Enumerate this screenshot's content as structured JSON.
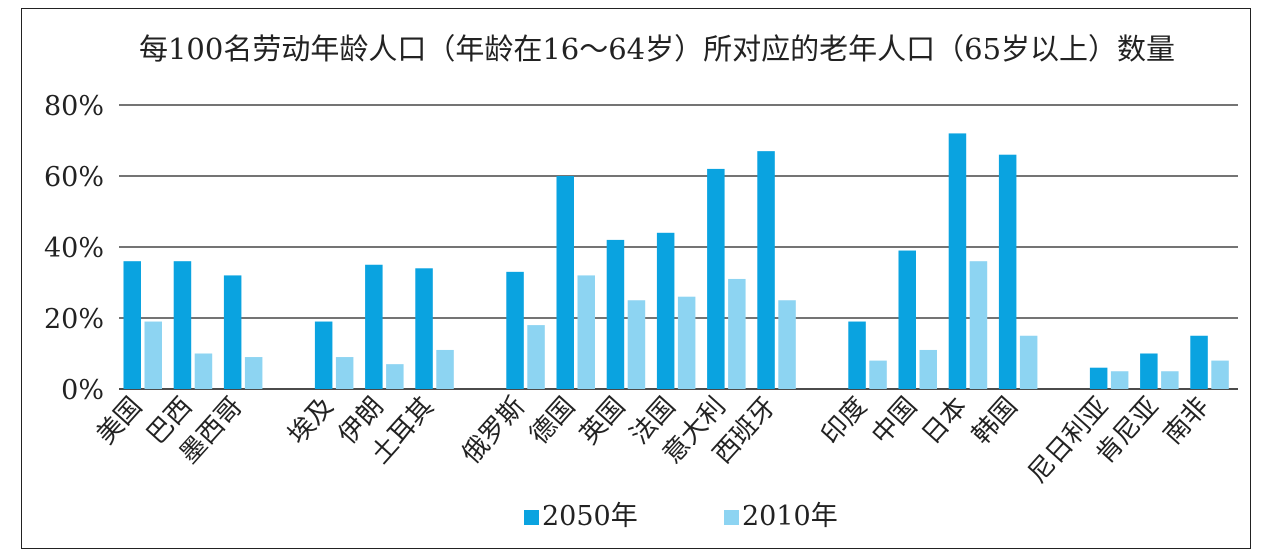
{
  "chart_data": {
    "type": "bar",
    "title": "每100名劳动年龄人口（年龄在16～64岁）所对应的老年人口（65岁以上）数量",
    "ylim": [
      0,
      80
    ],
    "yticks": [
      "0%",
      "20%",
      "40%",
      "60%",
      "80%"
    ],
    "grid": true,
    "legend_position": "bottom-center",
    "groups": [
      [
        "美国",
        "巴西",
        "墨西哥"
      ],
      [
        "埃及",
        "伊朗",
        "土耳其"
      ],
      [
        "俄罗斯",
        "德国",
        "英国",
        "法国",
        "意大利",
        "西班牙"
      ],
      [
        "印度",
        "中国",
        "日本",
        "韩国"
      ],
      [
        "尼日利亚",
        "肯尼亚",
        "南非"
      ]
    ],
    "categories": [
      "美国",
      "巴西",
      "墨西哥",
      "埃及",
      "伊朗",
      "土耳其",
      "俄罗斯",
      "德国",
      "英国",
      "法国",
      "意大利",
      "西班牙",
      "印度",
      "中国",
      "日本",
      "韩国",
      "尼日利亚",
      "肯尼亚",
      "南非"
    ],
    "series": [
      {
        "name": "2050年",
        "color": "#0aa3e0",
        "values": [
          36,
          36,
          32,
          19,
          35,
          34,
          33,
          60,
          42,
          44,
          62,
          67,
          19,
          39,
          72,
          66,
          6,
          10,
          15
        ]
      },
      {
        "name": "2010年",
        "color": "#8dd4f2",
        "values": [
          19,
          10,
          9,
          9,
          7,
          11,
          18,
          32,
          25,
          26,
          31,
          25,
          8,
          11,
          36,
          15,
          5,
          5,
          8
        ]
      }
    ]
  }
}
